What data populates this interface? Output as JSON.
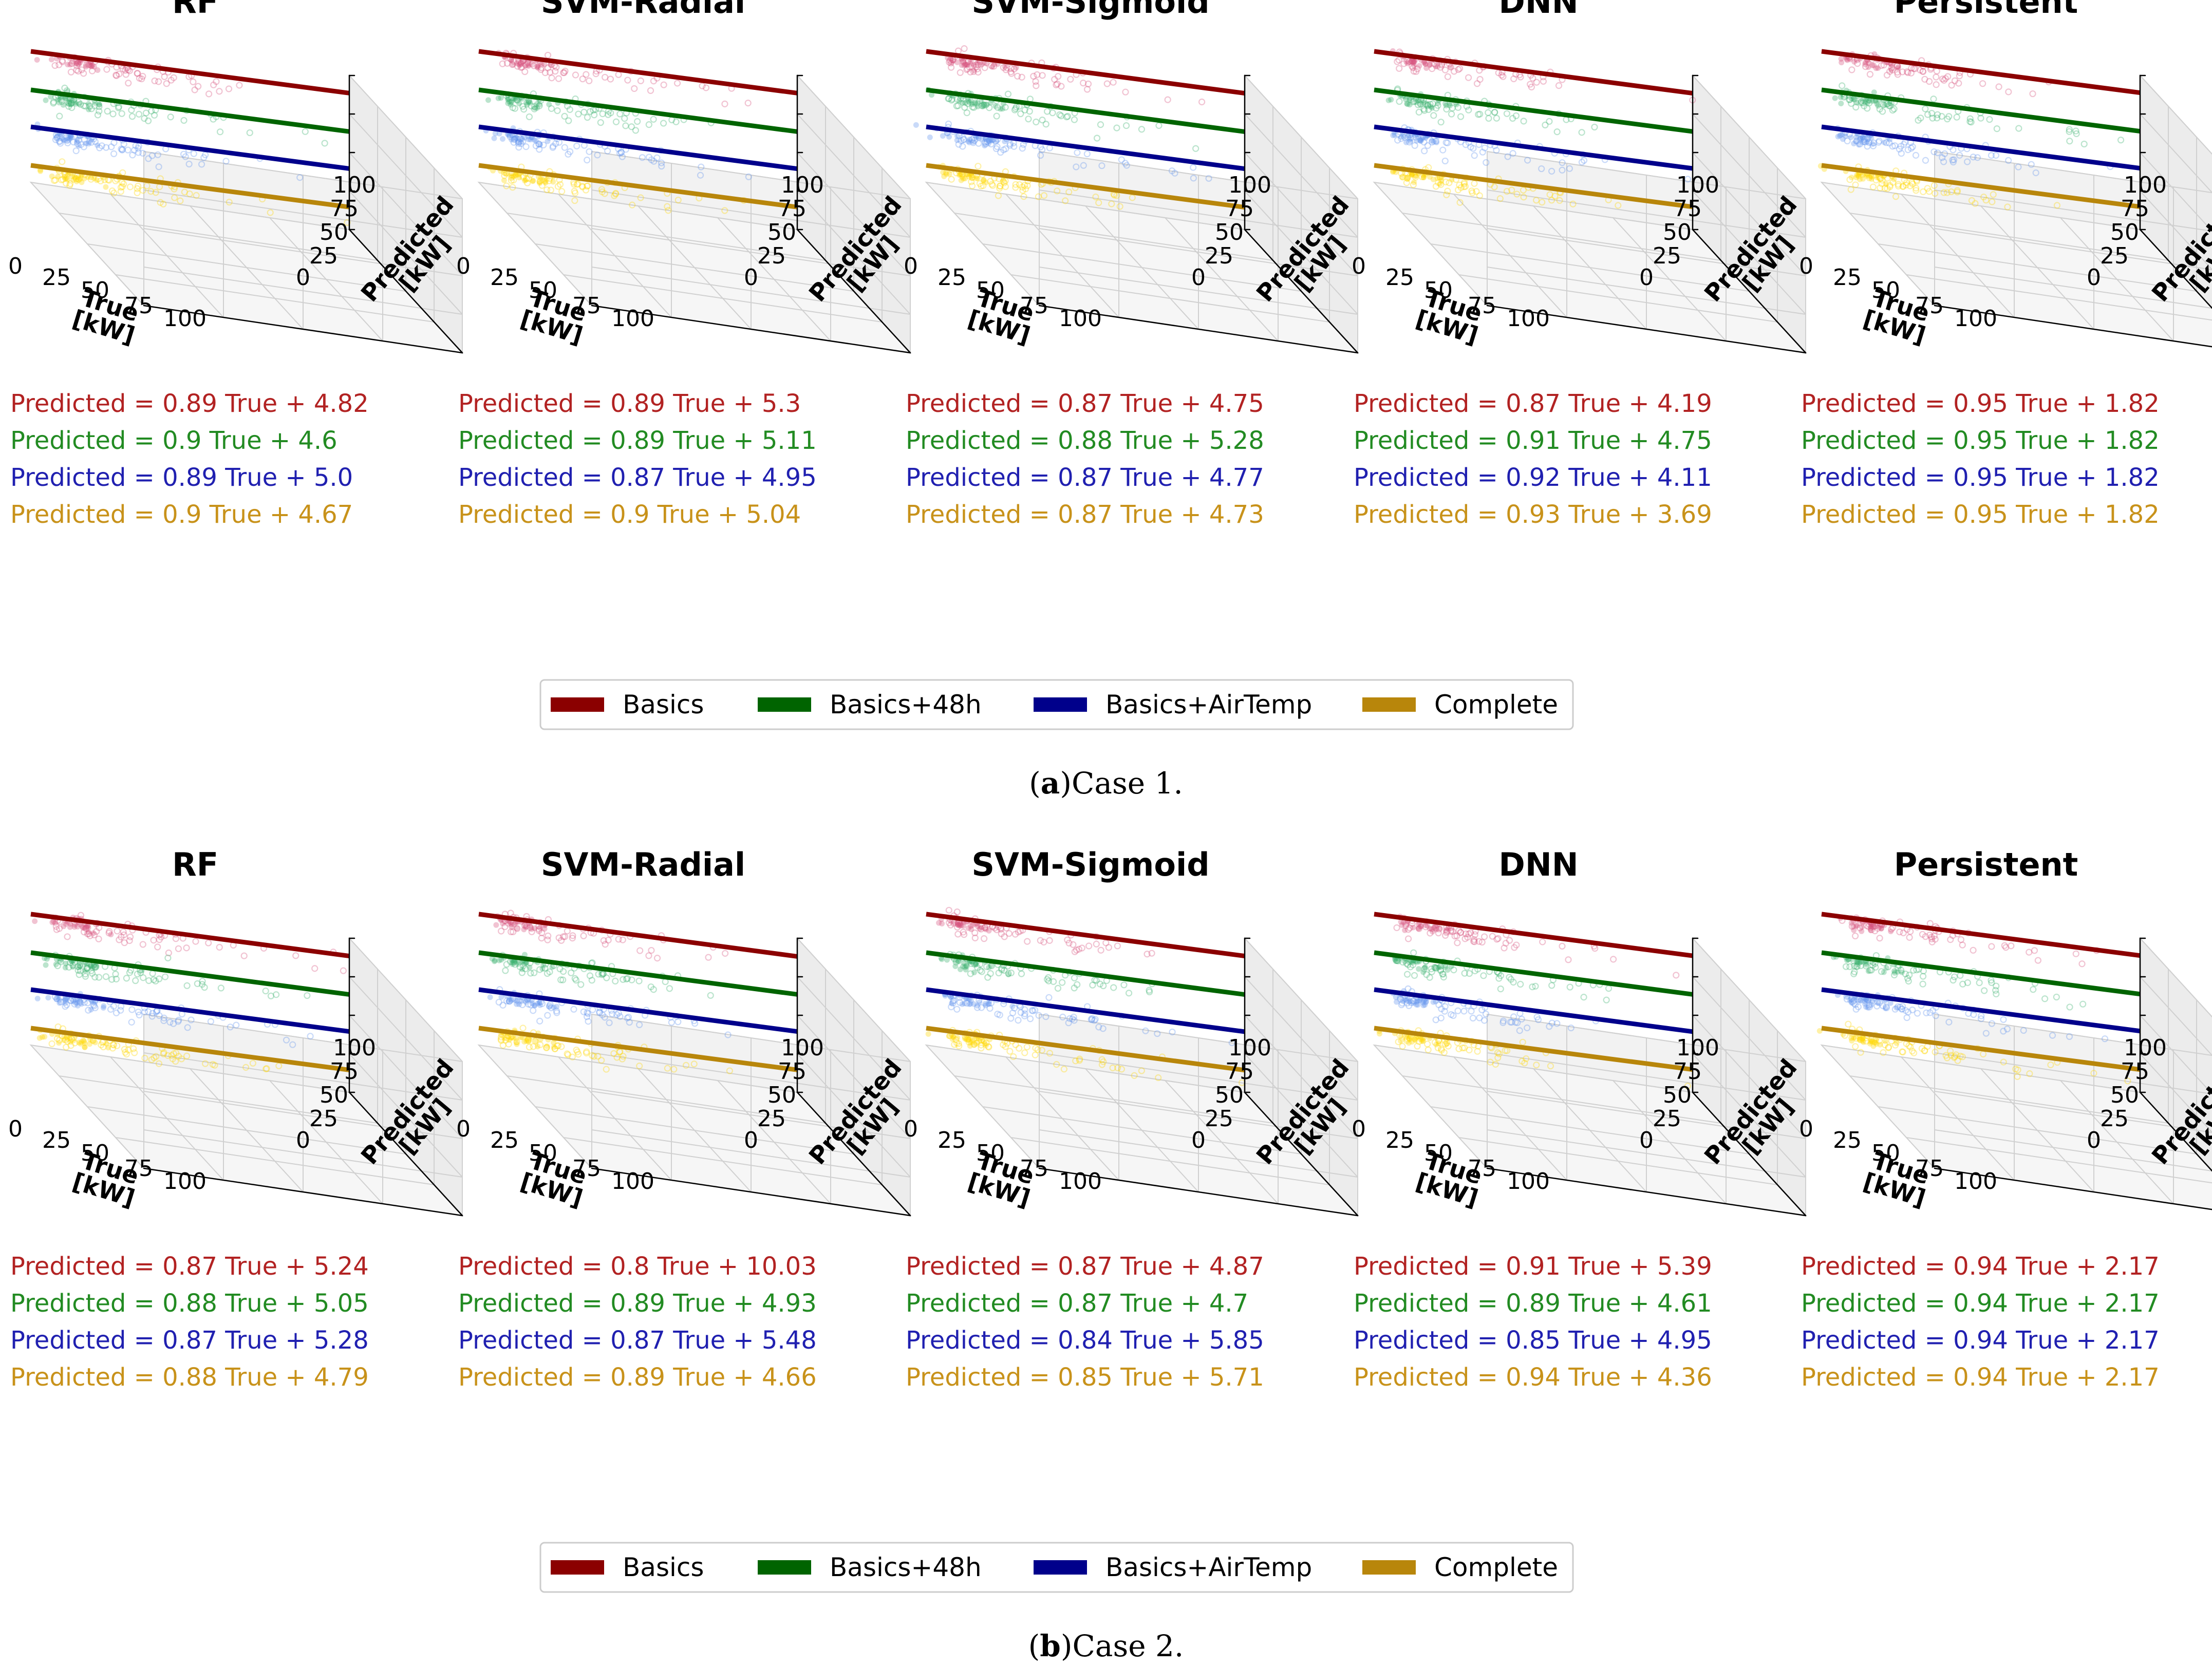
{
  "colors": {
    "Basics": "#8b0000",
    "Basics+48h": "#006400",
    "Basics+AirTemp": "#00008b",
    "Complete": "#b8860b",
    "scatter": [
      "#d8527f",
      "#3cb371",
      "#6495ed",
      "#ffd700"
    ],
    "eq": [
      "#b22222",
      "#228b22",
      "#2020b0",
      "#c8921a"
    ]
  },
  "axis": {
    "x_label": "True\n[kW]",
    "y_label": "Predicted\n[kW]",
    "x_ticks": [
      "0",
      "25",
      "50",
      "75",
      "100"
    ],
    "y_ticks": [
      "0",
      "25",
      "50",
      "75",
      "100"
    ],
    "xlim": [
      0,
      100
    ],
    "ylim": [
      0,
      100
    ]
  },
  "legend": [
    "Basics",
    "Basics+48h",
    "Basics+AirTemp",
    "Complete"
  ],
  "eq_template": {
    "lhs": "Predicted",
    "var": "True"
  },
  "chart_data": [
    {
      "type": "scatter",
      "case": "Case 1.",
      "label": "a",
      "panels": [
        {
          "title": "RF",
          "fits": [
            {
              "series": "Basics",
              "slope": 0.89,
              "intercept": "4.82",
              "slope_text": "0.89"
            },
            {
              "series": "Basics+48h",
              "slope": 0.9,
              "intercept": "4.6",
              "slope_text": "0.9"
            },
            {
              "series": "Basics+AirTemp",
              "slope": 0.89,
              "intercept": "5.0",
              "slope_text": "0.89"
            },
            {
              "series": "Complete",
              "slope": 0.9,
              "intercept": "4.67",
              "slope_text": "0.9"
            }
          ]
        },
        {
          "title": "SVM-Radial",
          "fits": [
            {
              "series": "Basics",
              "slope": 0.89,
              "intercept": "5.3",
              "slope_text": "0.89"
            },
            {
              "series": "Basics+48h",
              "slope": 0.89,
              "intercept": "5.11",
              "slope_text": "0.89"
            },
            {
              "series": "Basics+AirTemp",
              "slope": 0.87,
              "intercept": "4.95",
              "slope_text": "0.87"
            },
            {
              "series": "Complete",
              "slope": 0.9,
              "intercept": "5.04",
              "slope_text": "0.9"
            }
          ]
        },
        {
          "title": "SVM-Sigmoid",
          "fits": [
            {
              "series": "Basics",
              "slope": 0.87,
              "intercept": "4.75",
              "slope_text": "0.87"
            },
            {
              "series": "Basics+48h",
              "slope": 0.88,
              "intercept": "5.28",
              "slope_text": "0.88"
            },
            {
              "series": "Basics+AirTemp",
              "slope": 0.87,
              "intercept": "4.77",
              "slope_text": "0.87"
            },
            {
              "series": "Complete",
              "slope": 0.87,
              "intercept": "4.73",
              "slope_text": "0.87"
            }
          ]
        },
        {
          "title": "DNN",
          "fits": [
            {
              "series": "Basics",
              "slope": 0.87,
              "intercept": "4.19",
              "slope_text": "0.87"
            },
            {
              "series": "Basics+48h",
              "slope": 0.91,
              "intercept": "4.75",
              "slope_text": "0.91"
            },
            {
              "series": "Basics+AirTemp",
              "slope": 0.92,
              "intercept": "4.11",
              "slope_text": "0.92"
            },
            {
              "series": "Complete",
              "slope": 0.93,
              "intercept": "3.69",
              "slope_text": "0.93"
            }
          ]
        },
        {
          "title": "Persistent",
          "fits": [
            {
              "series": "Basics",
              "slope": 0.95,
              "intercept": "1.82",
              "slope_text": "0.95"
            },
            {
              "series": "Basics+48h",
              "slope": 0.95,
              "intercept": "1.82",
              "slope_text": "0.95"
            },
            {
              "series": "Basics+AirTemp",
              "slope": 0.95,
              "intercept": "1.82",
              "slope_text": "0.95"
            },
            {
              "series": "Complete",
              "slope": 0.95,
              "intercept": "1.82",
              "slope_text": "0.95"
            }
          ]
        }
      ]
    },
    {
      "type": "scatter",
      "case": "Case 2.",
      "label": "b",
      "panels": [
        {
          "title": "RF",
          "fits": [
            {
              "series": "Basics",
              "slope": 0.87,
              "intercept": "5.24",
              "slope_text": "0.87"
            },
            {
              "series": "Basics+48h",
              "slope": 0.88,
              "intercept": "5.05",
              "slope_text": "0.88"
            },
            {
              "series": "Basics+AirTemp",
              "slope": 0.87,
              "intercept": "5.28",
              "slope_text": "0.87"
            },
            {
              "series": "Complete",
              "slope": 0.88,
              "intercept": "4.79",
              "slope_text": "0.88"
            }
          ]
        },
        {
          "title": "SVM-Radial",
          "fits": [
            {
              "series": "Basics",
              "slope": 0.8,
              "intercept": "10.03",
              "slope_text": "0.8"
            },
            {
              "series": "Basics+48h",
              "slope": 0.89,
              "intercept": "4.93",
              "slope_text": "0.89"
            },
            {
              "series": "Basics+AirTemp",
              "slope": 0.87,
              "intercept": "5.48",
              "slope_text": "0.87"
            },
            {
              "series": "Complete",
              "slope": 0.89,
              "intercept": "4.66",
              "slope_text": "0.89"
            }
          ]
        },
        {
          "title": "SVM-Sigmoid",
          "fits": [
            {
              "series": "Basics",
              "slope": 0.87,
              "intercept": "4.87",
              "slope_text": "0.87"
            },
            {
              "series": "Basics+48h",
              "slope": 0.87,
              "intercept": "4.7",
              "slope_text": "0.87"
            },
            {
              "series": "Basics+AirTemp",
              "slope": 0.84,
              "intercept": "5.85",
              "slope_text": "0.84"
            },
            {
              "series": "Complete",
              "slope": 0.85,
              "intercept": "5.71",
              "slope_text": "0.85"
            }
          ]
        },
        {
          "title": "DNN",
          "fits": [
            {
              "series": "Basics",
              "slope": 0.91,
              "intercept": "5.39",
              "slope_text": "0.91"
            },
            {
              "series": "Basics+48h",
              "slope": 0.89,
              "intercept": "4.61",
              "slope_text": "0.89"
            },
            {
              "series": "Basics+AirTemp",
              "slope": 0.85,
              "intercept": "4.95",
              "slope_text": "0.85"
            },
            {
              "series": "Complete",
              "slope": 0.94,
              "intercept": "4.36",
              "slope_text": "0.94"
            }
          ]
        },
        {
          "title": "Persistent",
          "fits": [
            {
              "series": "Basics",
              "slope": 0.94,
              "intercept": "2.17",
              "slope_text": "0.94"
            },
            {
              "series": "Basics+48h",
              "slope": 0.94,
              "intercept": "2.17",
              "slope_text": "0.94"
            },
            {
              "series": "Basics+AirTemp",
              "slope": 0.94,
              "intercept": "2.17",
              "slope_text": "0.94"
            },
            {
              "series": "Complete",
              "slope": 0.94,
              "intercept": "2.17",
              "slope_text": "0.94"
            }
          ]
        }
      ]
    }
  ]
}
